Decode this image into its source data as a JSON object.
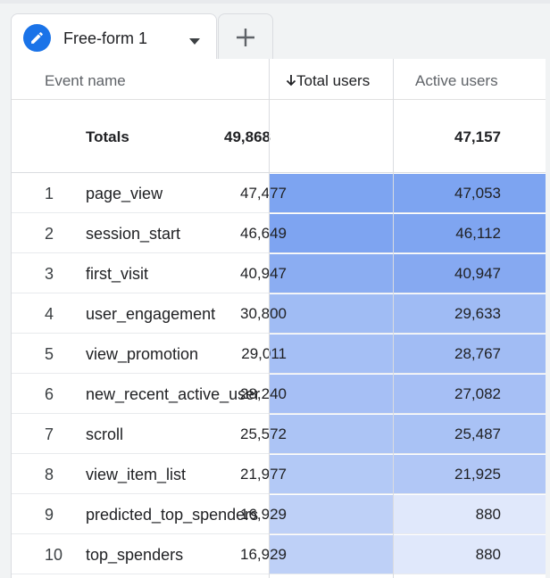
{
  "tab": {
    "label": "Free-form 1",
    "icon": "pencil-icon",
    "caret_icon": "caret-down-icon",
    "add_icon": "plus-icon"
  },
  "table": {
    "columns": {
      "event_name": "Event name",
      "total_users": "Total users",
      "active_users": "Active users",
      "sort_icon": "arrow-down-icon"
    },
    "totals": {
      "label": "Totals",
      "total_users": "49,868",
      "active_users": "47,157"
    },
    "rows": [
      {
        "index": "1",
        "event": "page_view",
        "total": "47,477",
        "active": "47,053",
        "total_fill": 0.95,
        "active_fill": 0.95
      },
      {
        "index": "2",
        "event": "session_start",
        "total": "46,649",
        "active": "46,112",
        "total_fill": 0.94,
        "active_fill": 0.93
      },
      {
        "index": "3",
        "event": "first_visit",
        "total": "40,947",
        "active": "40,947",
        "total_fill": 0.82,
        "active_fill": 0.87
      },
      {
        "index": "4",
        "event": "user_engagement",
        "total": "30,800",
        "active": "29,633",
        "total_fill": 0.62,
        "active_fill": 0.63
      },
      {
        "index": "5",
        "event": "view_promotion",
        "total": "29,011",
        "active": "28,767",
        "total_fill": 0.58,
        "active_fill": 0.61
      },
      {
        "index": "6",
        "event": "new_recent_active_user",
        "total": "28,240",
        "active": "27,082",
        "total_fill": 0.57,
        "active_fill": 0.57
      },
      {
        "index": "7",
        "event": "scroll",
        "total": "25,572",
        "active": "25,487",
        "total_fill": 0.51,
        "active_fill": 0.54
      },
      {
        "index": "8",
        "event": "view_item_list",
        "total": "21,977",
        "active": "21,925",
        "total_fill": 0.44,
        "active_fill": 0.46
      },
      {
        "index": "9",
        "event": "predicted_top_spenders",
        "total": "16,929",
        "active": "880",
        "total_fill": 0.34,
        "active_fill": 0.02
      },
      {
        "index": "10",
        "event": "top_spenders",
        "total": "16,929",
        "active": "880",
        "total_fill": 0.34,
        "active_fill": 0.02
      }
    ]
  },
  "colors": {
    "accent": "#1a73e8",
    "heat_strong": "#7ba2f0",
    "heat_weak": "#e2e9fb",
    "border": "#dadce0"
  }
}
